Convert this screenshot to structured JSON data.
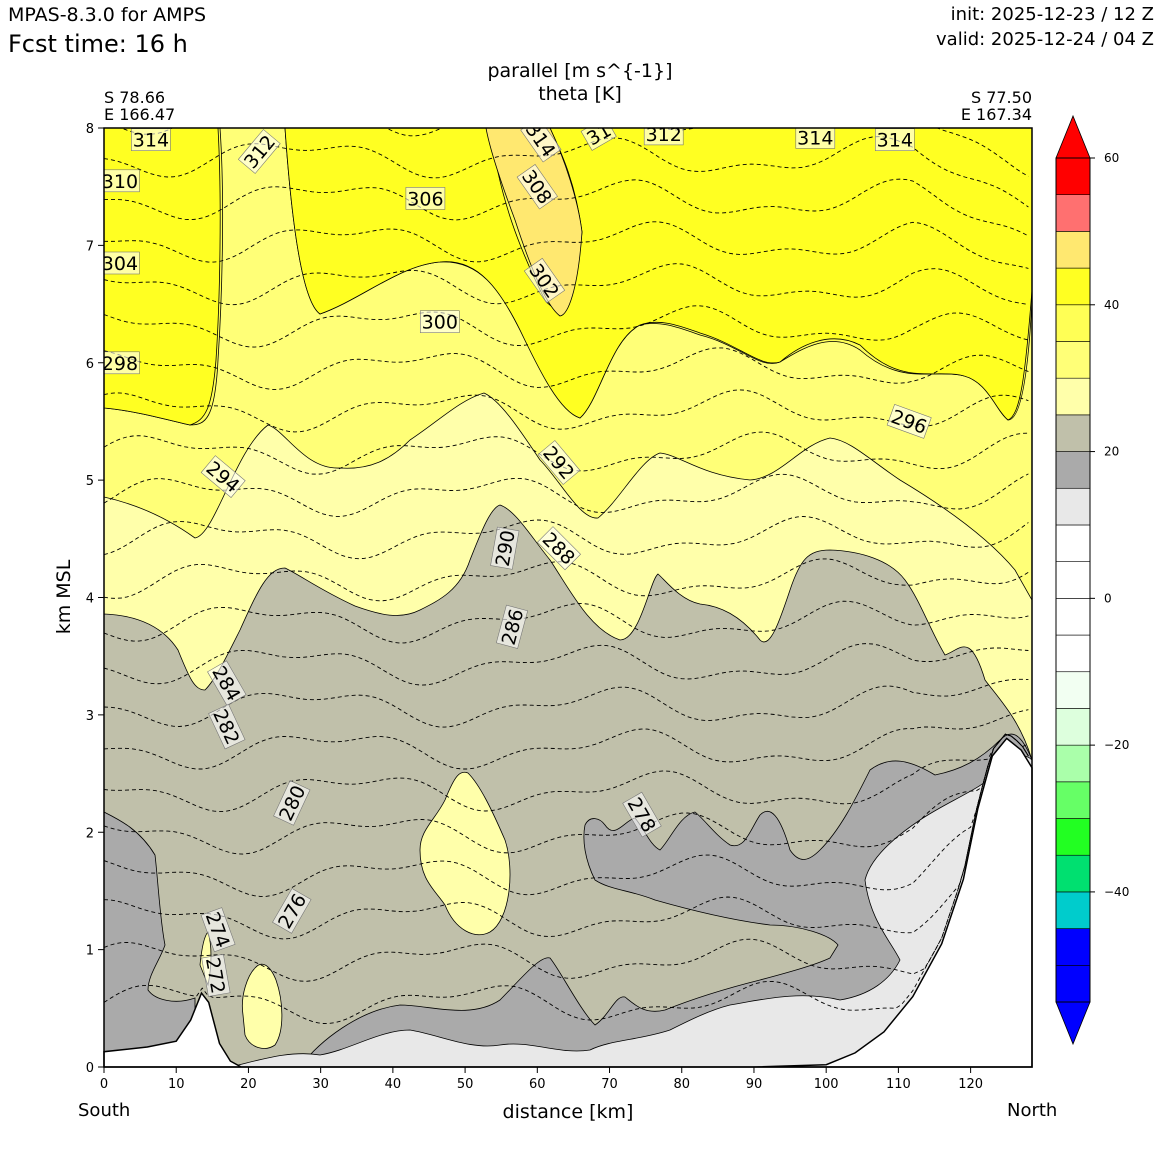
{
  "header": {
    "model": "MPAS-8.3.0 for AMPS",
    "fcst_time": "Fcst time:   16 h",
    "init": "init: 2025-12-23 / 12 Z",
    "valid": "valid: 2025-12-24 / 04 Z"
  },
  "colors": {
    "terrain": "#ffffff",
    "contour_line": "#000000",
    "plot_border": "#000000"
  },
  "chart_data": {
    "type": "contour",
    "title": "parallel [m s^{-1}]",
    "subtitle": "theta [K]",
    "xlabel": "distance [km]",
    "ylabel": "km MSL",
    "xlim": [
      0,
      128.5
    ],
    "ylim": [
      0,
      8
    ],
    "x_ticks": [
      0,
      10,
      20,
      30,
      40,
      50,
      60,
      70,
      80,
      90,
      100,
      110,
      120
    ],
    "y_ticks": [
      0,
      1,
      2,
      3,
      4,
      5,
      6,
      7,
      8
    ],
    "grid": false,
    "left_end": {
      "lat": "S 78.66",
      "lon": "E 166.47",
      "direction": "South"
    },
    "right_end": {
      "lat": "S 77.50",
      "lon": "E 167.34",
      "direction": "North"
    },
    "theta_levels": [
      272,
      274,
      276,
      278,
      280,
      282,
      284,
      286,
      288,
      290,
      292,
      294,
      296,
      298,
      300,
      302,
      304,
      306,
      308,
      310,
      312,
      314
    ],
    "theta_labels": [
      {
        "text": "314",
        "x": 6.5,
        "y": 7.9,
        "rot": 0
      },
      {
        "text": "312",
        "x": 21.5,
        "y": 7.8,
        "rot": -50
      },
      {
        "text": "310",
        "x": 2.2,
        "y": 7.55,
        "rot": 0
      },
      {
        "text": "306",
        "x": 44.5,
        "y": 7.4,
        "rot": 0
      },
      {
        "text": "314",
        "x": 60.5,
        "y": 7.9,
        "rot": 55
      },
      {
        "text": "31",
        "x": 68.5,
        "y": 7.95,
        "rot": -30
      },
      {
        "text": "312",
        "x": 77.5,
        "y": 7.95,
        "rot": 0
      },
      {
        "text": "314",
        "x": 98.5,
        "y": 7.92,
        "rot": 0
      },
      {
        "text": "314",
        "x": 109.5,
        "y": 7.9,
        "rot": 0
      },
      {
        "text": "308",
        "x": 60.0,
        "y": 7.5,
        "rot": 55
      },
      {
        "text": "304",
        "x": 2.2,
        "y": 6.85,
        "rot": 0
      },
      {
        "text": "302",
        "x": 61.0,
        "y": 6.7,
        "rot": 55
      },
      {
        "text": "300",
        "x": 46.5,
        "y": 6.35,
        "rot": 0
      },
      {
        "text": "298",
        "x": 2.2,
        "y": 6.0,
        "rot": 0
      },
      {
        "text": "296",
        "x": 111.5,
        "y": 5.5,
        "rot": 20
      },
      {
        "text": "294",
        "x": 16.5,
        "y": 5.03,
        "rot": 40
      },
      {
        "text": "292",
        "x": 63.0,
        "y": 5.15,
        "rot": 50
      },
      {
        "text": "290",
        "x": 55.5,
        "y": 4.42,
        "rot": -80
      },
      {
        "text": "288",
        "x": 63.0,
        "y": 4.42,
        "rot": 45
      },
      {
        "text": "286",
        "x": 56.5,
        "y": 3.75,
        "rot": -75
      },
      {
        "text": "284",
        "x": 17.0,
        "y": 3.27,
        "rot": 60
      },
      {
        "text": "282",
        "x": 17.0,
        "y": 2.9,
        "rot": 65
      },
      {
        "text": "280",
        "x": 26.0,
        "y": 2.25,
        "rot": -65
      },
      {
        "text": "278",
        "x": 74.5,
        "y": 2.15,
        "rot": 60
      },
      {
        "text": "276",
        "x": 26.0,
        "y": 1.33,
        "rot": -60
      },
      {
        "text": "274",
        "x": 15.8,
        "y": 1.17,
        "rot": 70
      },
      {
        "text": "272",
        "x": 15.5,
        "y": 0.78,
        "rot": 80
      }
    ],
    "colorbar": {
      "label_ticks": [
        "60",
        "40",
        "20",
        "0",
        "−20",
        "−40"
      ],
      "levels": [
        -55,
        -50,
        -45,
        -40,
        -35,
        -30,
        -25,
        -20,
        -15,
        -10,
        -5,
        0,
        5,
        10,
        15,
        20,
        25,
        30,
        35,
        40,
        45,
        50,
        55,
        60
      ],
      "colors": [
        "#0000ff",
        "#0000ff",
        "#00cccc",
        "#00e070",
        "#22ff22",
        "#66ff66",
        "#aaffaa",
        "#ddffdd",
        "#f2fff2",
        "#ffffff",
        "#ffffff",
        "#ffffff",
        "#ffffff",
        "#e8e8e8",
        "#aaaaaa",
        "#c0c0aa",
        "#ffffaa",
        "#ffff77",
        "#ffff55",
        "#ffff22",
        "#ffe870",
        "#ff7070",
        "#ff0000"
      ],
      "under_color": "#0000ff",
      "over_color": "#ff0000",
      "extend": "both"
    }
  }
}
